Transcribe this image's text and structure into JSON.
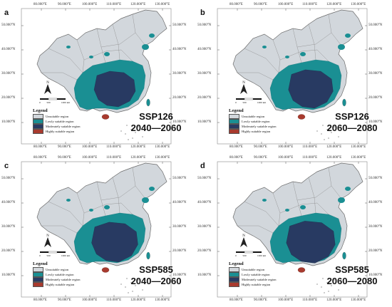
{
  "axis": {
    "lon_labels": [
      "80.000°E",
      "90.000°E",
      "100.000°E",
      "110.000°E",
      "120.000°E",
      "130.000°E"
    ],
    "lat_labels": [
      "50.000°N",
      "40.000°N",
      "30.000°N",
      "20.000°N",
      "10.000°N"
    ]
  },
  "legend": {
    "title": "Legend",
    "items": [
      {
        "label": "Unsuitable region",
        "color": "#d2d7dc"
      },
      {
        "label": "Lowly suitable region",
        "color": "#1a8f93"
      },
      {
        "label": "Moderately suitable region",
        "color": "#283a62"
      },
      {
        "label": "Highly suitable region",
        "color": "#a83a2e"
      }
    ]
  },
  "scale_bar": {
    "labels": [
      "0",
      "500",
      "1000 km"
    ],
    "north_label": "N"
  },
  "panels": [
    {
      "letter": "a",
      "scenario": "SSP126",
      "period": "2040—2060"
    },
    {
      "letter": "b",
      "scenario": "SSP126",
      "period": "2060—2080"
    },
    {
      "letter": "c",
      "scenario": "SSP585",
      "period": "2040—2060"
    },
    {
      "letter": "d",
      "scenario": "SSP585",
      "period": "2060—2080"
    }
  ]
}
